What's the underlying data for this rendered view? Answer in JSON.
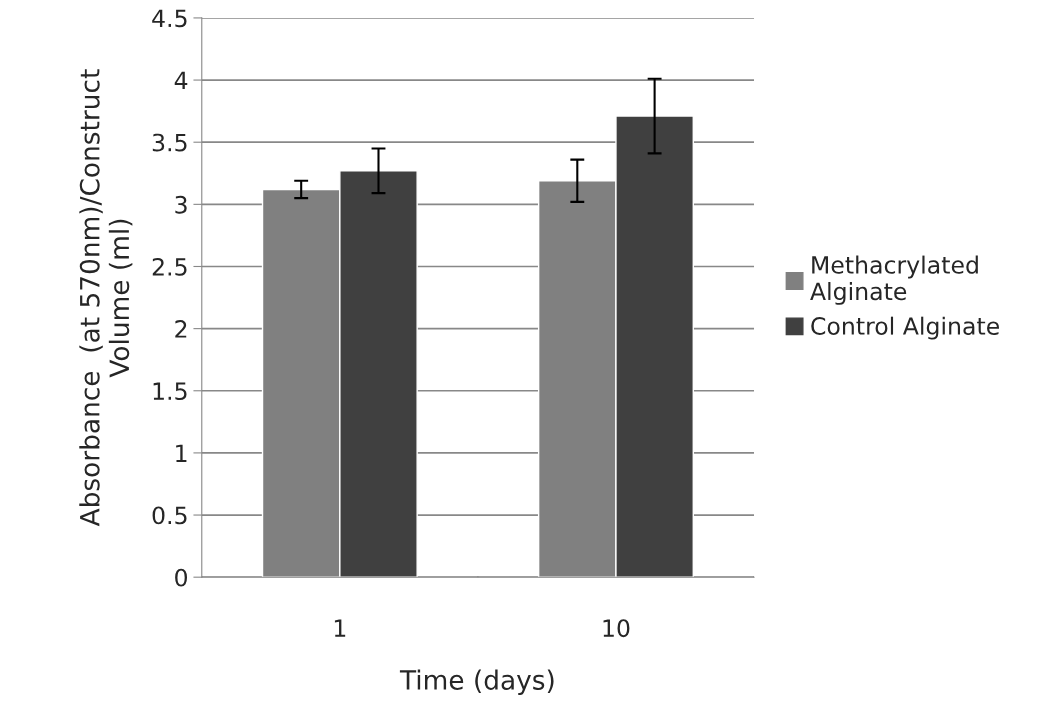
{
  "chart_data": {
    "type": "bar",
    "xlabel": "Time (days)",
    "ylabel": "Absorbance  (at 570nm)/Construct\nVolume (ml)",
    "categories": [
      "1",
      "10"
    ],
    "series": [
      {
        "name": "Methacrylated\nAlginate",
        "color": "#808080",
        "values": [
          3.12,
          3.19
        ],
        "errors": [
          0.07,
          0.17
        ]
      },
      {
        "name": "Control Alginate",
        "color": "#404040",
        "values": [
          3.27,
          3.71
        ],
        "errors": [
          0.18,
          0.3
        ]
      }
    ],
    "ylim": [
      0,
      4.5
    ],
    "yticks": [
      0,
      0.5,
      1,
      1.5,
      2,
      2.5,
      3,
      3.5,
      4,
      4.5
    ],
    "grid": "y",
    "legend": "right"
  }
}
